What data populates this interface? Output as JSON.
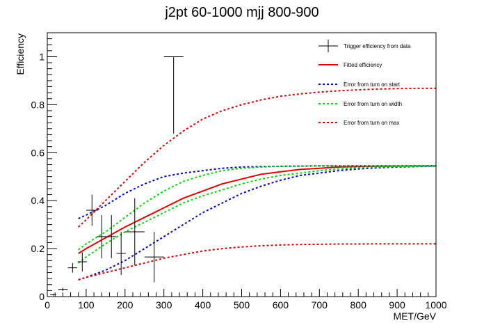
{
  "chart_data": {
    "type": "line",
    "title": "j2pt 60-1000 mjj 800-900",
    "xlabel": "MET/GeV",
    "ylabel": "Efficiency",
    "xlim": [
      0,
      1000
    ],
    "ylim": [
      0,
      1.1
    ],
    "x_ticks": [
      0,
      100,
      200,
      300,
      400,
      500,
      600,
      700,
      800,
      900,
      1000
    ],
    "y_ticks": [
      0,
      0.2,
      0.4,
      0.6,
      0.8,
      1
    ],
    "x_tick_labels": [
      "0",
      "100",
      "200",
      "300",
      "400",
      "500",
      "600",
      "700",
      "800",
      "900",
      "1000"
    ],
    "y_tick_labels": [
      "0",
      "0.2",
      "0.4",
      "0.6",
      "0.8",
      "1"
    ],
    "legend_position": "top-right",
    "data_points": {
      "name": "Trigger efficiency from data",
      "color": "#000000",
      "points": [
        {
          "x": 15,
          "xerr": 8,
          "y": 0.008,
          "yerr": 0.004
        },
        {
          "x": 40,
          "xerr": 12,
          "y": 0.03,
          "yerr": 0.007
        },
        {
          "x": 65,
          "xerr": 12,
          "y": 0.12,
          "yerr": 0.02
        },
        {
          "x": 90,
          "xerr": 12,
          "y": 0.145,
          "yerr": 0.04
        },
        {
          "x": 115,
          "xerr": 15,
          "y": 0.36,
          "yerr": 0.065
        },
        {
          "x": 140,
          "xerr": 12,
          "y": 0.25,
          "yerr": 0.09
        },
        {
          "x": 165,
          "xerr": 12,
          "y": 0.25,
          "yerr": 0.09
        },
        {
          "x": 190,
          "xerr": 12,
          "y": 0.18,
          "yerr": 0.09
        },
        {
          "x": 225,
          "xerr": 25,
          "y": 0.27,
          "yerr": 0.14
        },
        {
          "x": 275,
          "xerr": 25,
          "y": 0.165,
          "yerr": 0.105
        },
        {
          "x": 325,
          "xerr": 25,
          "y": 1.0,
          "yerr_low": 0.32,
          "yerr_high": 0
        }
      ]
    },
    "series": [
      {
        "name": "Fitted efficiency",
        "color": "#e00000",
        "style": "solid",
        "x": [
          80,
          100,
          150,
          200,
          250,
          300,
          350,
          400,
          450,
          500,
          550,
          600,
          650,
          700,
          750,
          800,
          850,
          900,
          950,
          1000
        ],
        "y": [
          0.18,
          0.2,
          0.245,
          0.29,
          0.33,
          0.37,
          0.41,
          0.44,
          0.47,
          0.49,
          0.51,
          0.52,
          0.53,
          0.535,
          0.54,
          0.542,
          0.543,
          0.544,
          0.545,
          0.545
        ]
      },
      {
        "name": "Error from turn on start",
        "color": "#0000cc",
        "style": "dashed",
        "x": [
          80,
          100,
          150,
          200,
          250,
          300,
          350,
          400,
          450,
          500,
          550,
          600,
          650,
          700,
          750,
          800,
          850,
          900,
          950,
          1000
        ],
        "y": [
          0.325,
          0.34,
          0.38,
          0.43,
          0.47,
          0.5,
          0.515,
          0.525,
          0.535,
          0.54,
          0.542,
          0.543,
          0.544,
          0.545,
          0.545,
          0.545,
          0.545,
          0.545,
          0.545,
          0.545
        ]
      },
      {
        "name": "Error from turn on start",
        "color": "#0000cc",
        "style": "dashed",
        "x": [
          80,
          100,
          150,
          200,
          250,
          300,
          350,
          400,
          450,
          500,
          550,
          600,
          650,
          700,
          750,
          800,
          850,
          900,
          950,
          1000
        ],
        "y": [
          0.07,
          0.08,
          0.11,
          0.15,
          0.2,
          0.25,
          0.3,
          0.35,
          0.39,
          0.43,
          0.46,
          0.485,
          0.505,
          0.515,
          0.525,
          0.532,
          0.537,
          0.54,
          0.542,
          0.544
        ]
      },
      {
        "name": "Error from turn on width",
        "color": "#00dd00",
        "style": "dashed",
        "x": [
          80,
          100,
          150,
          200,
          250,
          300,
          350,
          400,
          450,
          500,
          550,
          600,
          650,
          700,
          750,
          800,
          850,
          900,
          950,
          1000
        ],
        "y": [
          0.195,
          0.22,
          0.27,
          0.33,
          0.39,
          0.44,
          0.48,
          0.505,
          0.525,
          0.535,
          0.54,
          0.543,
          0.544,
          0.545,
          0.545,
          0.545,
          0.545,
          0.545,
          0.545,
          0.545
        ]
      },
      {
        "name": "Error from turn on width",
        "color": "#00dd00",
        "style": "dashed",
        "x": [
          80,
          100,
          150,
          200,
          250,
          300,
          350,
          400,
          450,
          500,
          550,
          600,
          650,
          700,
          750,
          800,
          850,
          900,
          950,
          1000
        ],
        "y": [
          0.14,
          0.165,
          0.22,
          0.27,
          0.31,
          0.35,
          0.39,
          0.42,
          0.445,
          0.47,
          0.49,
          0.505,
          0.515,
          0.525,
          0.532,
          0.537,
          0.54,
          0.542,
          0.544,
          0.545
        ]
      },
      {
        "name": "Error from turn on max",
        "color": "#dd0000",
        "style": "dashed",
        "x": [
          80,
          100,
          150,
          200,
          250,
          300,
          350,
          400,
          450,
          500,
          550,
          600,
          650,
          700,
          750,
          800,
          850,
          900,
          950,
          1000
        ],
        "y": [
          0.29,
          0.32,
          0.4,
          0.48,
          0.56,
          0.63,
          0.69,
          0.74,
          0.775,
          0.8,
          0.82,
          0.835,
          0.845,
          0.852,
          0.858,
          0.862,
          0.865,
          0.867,
          0.868,
          0.868
        ]
      },
      {
        "name": "Error from turn on max",
        "color": "#dd0000",
        "style": "dashed",
        "x": [
          80,
          100,
          150,
          200,
          250,
          300,
          350,
          400,
          450,
          500,
          550,
          600,
          650,
          700,
          750,
          800,
          850,
          900,
          950,
          1000
        ],
        "y": [
          0.07,
          0.08,
          0.1,
          0.12,
          0.14,
          0.16,
          0.175,
          0.19,
          0.2,
          0.207,
          0.212,
          0.215,
          0.217,
          0.218,
          0.219,
          0.219,
          0.22,
          0.22,
          0.22,
          0.22
        ]
      }
    ],
    "legend": [
      {
        "label": "Trigger efficiency from data",
        "color": "#000000",
        "kind": "errorbar"
      },
      {
        "label": "Fitted efficiency",
        "color": "#e00000",
        "kind": "solid"
      },
      {
        "label": "Error from turn on start",
        "color": "#0000cc",
        "kind": "dashed"
      },
      {
        "label": "Error from turn on width",
        "color": "#00dd00",
        "kind": "dashed"
      },
      {
        "label": "Error from turn on max",
        "color": "#dd0000",
        "kind": "dashed"
      }
    ]
  }
}
